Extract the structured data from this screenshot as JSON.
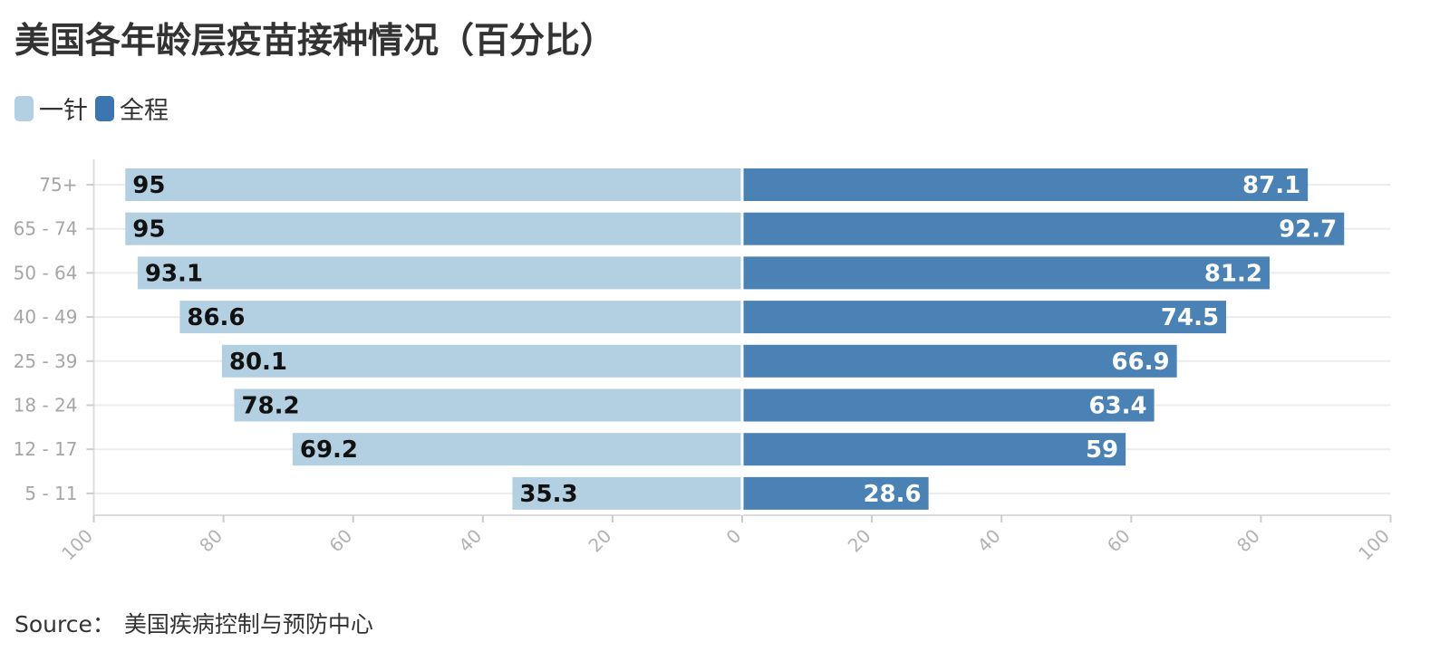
{
  "title": "美国各年龄层疫苗接种情况（百分比）",
  "source_label": "Source：",
  "source_text": "美国疾病控制与预防中心",
  "legend": [
    {
      "label": "一针",
      "color": "#b3cfe2"
    },
    {
      "label": "全程",
      "color": "#3b76b0"
    }
  ],
  "chart_data": {
    "type": "bar",
    "orientation": "horizontal-diverging",
    "categories": [
      "75+",
      "65 - 74",
      "50 - 64",
      "40 - 49",
      "25 - 39",
      "18 - 24",
      "12 - 17",
      "5 - 11"
    ],
    "series": [
      {
        "name": "一针",
        "color": "#b3cfe2",
        "side": "left",
        "values": [
          95,
          95,
          93.1,
          86.6,
          80.1,
          78.2,
          69.2,
          35.3
        ]
      },
      {
        "name": "全程",
        "color": "#4a82b6",
        "side": "right",
        "values": [
          87.1,
          92.7,
          81.2,
          74.5,
          66.9,
          63.4,
          59,
          28.6
        ]
      }
    ],
    "xlim": [
      -100,
      100
    ],
    "xticks": [
      "100",
      "80",
      "60",
      "40",
      "20",
      "0",
      "20",
      "40",
      "60",
      "80",
      "100"
    ],
    "grid": true,
    "legend_position": "top-left"
  }
}
